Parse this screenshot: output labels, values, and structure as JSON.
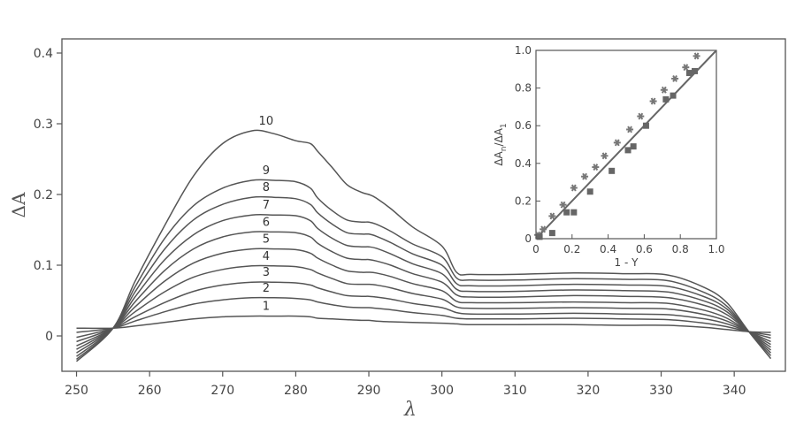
{
  "chart_data": [
    {
      "type": "line",
      "title": "",
      "xlabel": "λ",
      "ylabel": "ΔA",
      "xlim": [
        248,
        347
      ],
      "ylim": [
        -0.05,
        0.42
      ],
      "x_ticks": [
        250,
        260,
        270,
        280,
        290,
        300,
        310,
        320,
        330,
        340
      ],
      "y_ticks": [
        0,
        0.1,
        0.2,
        0.3,
        0.4
      ],
      "y_tick_labels": [
        "0",
        "0.1",
        "0.2",
        "0.3",
        "0.4"
      ],
      "grid": false,
      "isosbestic_points": [
        255,
        342
      ],
      "x": [
        250,
        255,
        258,
        262,
        266,
        270,
        274,
        277,
        280,
        282,
        283,
        285,
        287,
        289,
        290,
        291,
        293,
        296,
        300,
        302,
        304,
        310,
        318,
        325,
        331,
        336,
        339,
        342,
        345
      ],
      "series": [
        {
          "name": "1",
          "label": "1",
          "values": [
            0.011,
            0.011,
            0.014,
            0.019,
            0.024,
            0.027,
            0.028,
            0.028,
            0.028,
            0.027,
            0.025,
            0.024,
            0.023,
            0.022,
            0.022,
            0.021,
            0.02,
            0.019,
            0.018,
            0.017,
            0.016,
            0.016,
            0.016,
            0.015,
            0.015,
            0.012,
            0.009,
            0.006,
            0.005
          ]
        },
        {
          "name": "2",
          "label": "2",
          "values": [
            0.005,
            0.011,
            0.021,
            0.034,
            0.045,
            0.051,
            0.054,
            0.054,
            0.053,
            0.051,
            0.048,
            0.044,
            0.041,
            0.04,
            0.04,
            0.039,
            0.037,
            0.033,
            0.029,
            0.025,
            0.024,
            0.024,
            0.025,
            0.024,
            0.023,
            0.018,
            0.013,
            0.006,
            0.001
          ]
        },
        {
          "name": "3",
          "label": "3",
          "values": [
            -0.002,
            0.011,
            0.027,
            0.047,
            0.063,
            0.072,
            0.076,
            0.076,
            0.075,
            0.072,
            0.068,
            0.062,
            0.057,
            0.056,
            0.056,
            0.055,
            0.052,
            0.046,
            0.04,
            0.033,
            0.031,
            0.031,
            0.032,
            0.031,
            0.03,
            0.024,
            0.017,
            0.006,
            -0.003
          ]
        },
        {
          "name": "4",
          "label": "4",
          "values": [
            -0.008,
            0.011,
            0.034,
            0.062,
            0.083,
            0.094,
            0.099,
            0.099,
            0.098,
            0.094,
            0.089,
            0.081,
            0.074,
            0.073,
            0.073,
            0.072,
            0.068,
            0.06,
            0.052,
            0.041,
            0.039,
            0.039,
            0.04,
            0.039,
            0.038,
            0.03,
            0.021,
            0.006,
            -0.008
          ]
        },
        {
          "name": "5",
          "label": "5",
          "values": [
            -0.014,
            0.011,
            0.041,
            0.077,
            0.103,
            0.117,
            0.123,
            0.123,
            0.122,
            0.117,
            0.11,
            0.1,
            0.092,
            0.09,
            0.09,
            0.089,
            0.084,
            0.074,
            0.064,
            0.049,
            0.047,
            0.047,
            0.048,
            0.047,
            0.046,
            0.036,
            0.025,
            0.006,
            -0.012
          ]
        },
        {
          "name": "6",
          "label": "6",
          "values": [
            -0.019,
            0.011,
            0.048,
            0.092,
            0.123,
            0.14,
            0.147,
            0.147,
            0.146,
            0.14,
            0.131,
            0.119,
            0.11,
            0.108,
            0.108,
            0.106,
            0.1,
            0.088,
            0.076,
            0.058,
            0.055,
            0.055,
            0.057,
            0.056,
            0.054,
            0.043,
            0.03,
            0.006,
            -0.016
          ]
        },
        {
          "name": "7",
          "label": "7",
          "values": [
            -0.024,
            0.011,
            0.055,
            0.107,
            0.143,
            0.163,
            0.171,
            0.171,
            0.17,
            0.163,
            0.152,
            0.138,
            0.128,
            0.126,
            0.126,
            0.124,
            0.116,
            0.102,
            0.088,
            0.066,
            0.063,
            0.063,
            0.065,
            0.064,
            0.062,
            0.049,
            0.034,
            0.006,
            -0.02
          ]
        },
        {
          "name": "8",
          "label": "8",
          "values": [
            -0.029,
            0.011,
            0.062,
            0.122,
            0.164,
            0.186,
            0.196,
            0.196,
            0.194,
            0.186,
            0.174,
            0.158,
            0.146,
            0.144,
            0.144,
            0.141,
            0.132,
            0.116,
            0.1,
            0.074,
            0.071,
            0.071,
            0.073,
            0.072,
            0.07,
            0.055,
            0.038,
            0.006,
            -0.024
          ]
        },
        {
          "name": "9",
          "label": "9",
          "values": [
            -0.033,
            0.011,
            0.069,
            0.137,
            0.184,
            0.209,
            0.22,
            0.22,
            0.218,
            0.209,
            0.195,
            0.177,
            0.164,
            0.161,
            0.161,
            0.158,
            0.148,
            0.13,
            0.112,
            0.082,
            0.079,
            0.079,
            0.081,
            0.08,
            0.078,
            0.061,
            0.042,
            0.006,
            -0.028
          ]
        },
        {
          "name": "10",
          "label": "10",
          "values": [
            -0.036,
            0.011,
            0.077,
            0.155,
            0.226,
            0.272,
            0.29,
            0.286,
            0.276,
            0.272,
            0.261,
            0.238,
            0.214,
            0.203,
            0.2,
            0.195,
            0.18,
            0.154,
            0.127,
            0.09,
            0.087,
            0.087,
            0.089,
            0.088,
            0.086,
            0.068,
            0.047,
            0.006,
            -0.032
          ]
        }
      ]
    },
    {
      "type": "scatter",
      "title": "",
      "xlabel": "1 - Y",
      "ylabel": "ΔAn/ΔA1",
      "ylabel_main": "ΔA",
      "ylabel_sub1": "n",
      "ylabel_sep": "/ΔA",
      "ylabel_sub2": "1",
      "xlim": [
        0,
        1.0
      ],
      "ylim": [
        0,
        1.0
      ],
      "x_ticks": [
        0,
        0.2,
        0.4,
        0.6,
        0.8,
        1.0
      ],
      "x_tick_labels": [
        "0",
        "0.2",
        "0.4",
        "0.6",
        "0.8",
        "1.0"
      ],
      "y_ticks": [
        0,
        0.2,
        0.4,
        0.6,
        0.8,
        1.0
      ],
      "y_tick_labels": [
        "0",
        "0.2",
        "0.4",
        "0.6",
        "0.8",
        "1.0"
      ],
      "line": {
        "x": [
          0,
          1.0
        ],
        "y": [
          0,
          1.0
        ]
      },
      "series": [
        {
          "marker": "star",
          "x": [
            0.01,
            0.04,
            0.09,
            0.15,
            0.21,
            0.27,
            0.33,
            0.38,
            0.45,
            0.52,
            0.58,
            0.65,
            0.71,
            0.77,
            0.83,
            0.89
          ],
          "y": [
            0.02,
            0.05,
            0.12,
            0.18,
            0.27,
            0.33,
            0.38,
            0.44,
            0.51,
            0.58,
            0.65,
            0.73,
            0.79,
            0.85,
            0.91,
            0.97
          ]
        },
        {
          "marker": "square",
          "x": [
            0.02,
            0.09,
            0.17,
            0.21,
            0.3,
            0.42,
            0.51,
            0.54,
            0.61,
            0.72,
            0.76,
            0.85,
            0.88
          ],
          "y": [
            0.01,
            0.03,
            0.14,
            0.14,
            0.25,
            0.36,
            0.47,
            0.49,
            0.6,
            0.74,
            0.76,
            0.88,
            0.89
          ]
        }
      ]
    }
  ]
}
